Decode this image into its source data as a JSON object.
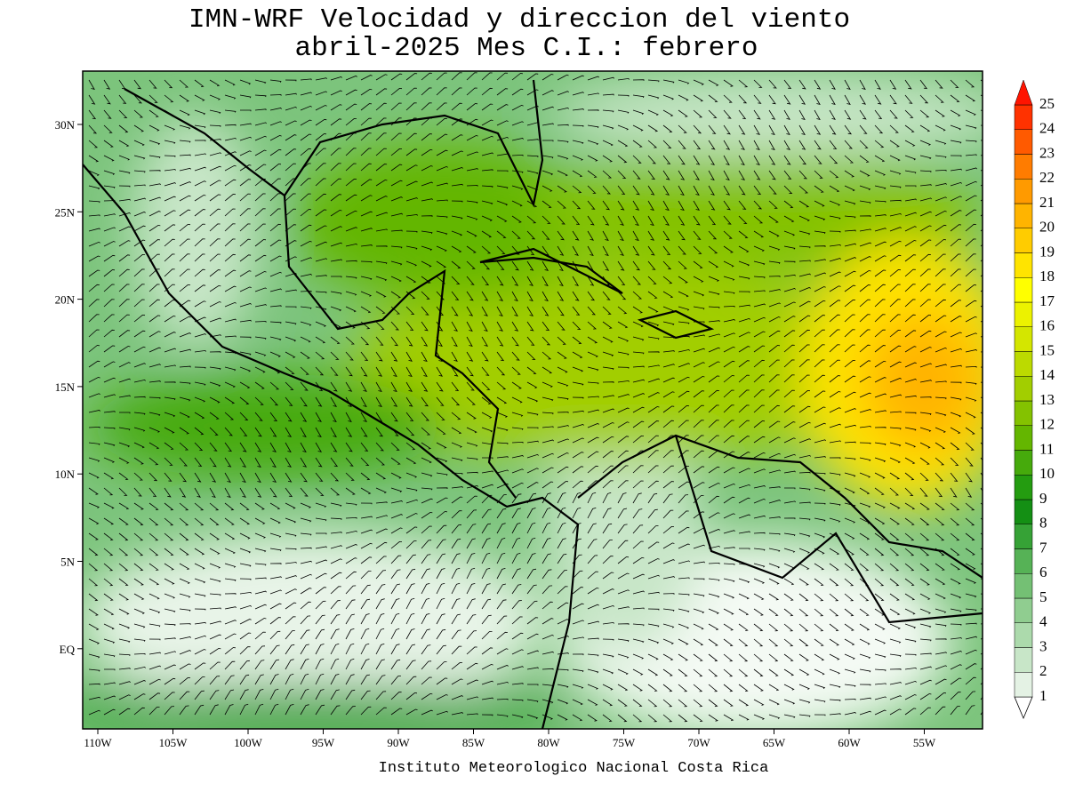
{
  "title": [
    "IMN-WRF Velocidad y direccion del viento",
    "abril-2025 Mes C.I.: febrero"
  ],
  "map": {
    "x_labels": [
      "110W",
      "105W",
      "100W",
      "95W",
      "90W",
      "85W",
      "80W",
      "75W",
      "70W",
      "65W",
      "60W",
      "55W"
    ],
    "y_labels": [
      "30N",
      "25N",
      "20N",
      "15N",
      "10N",
      "5N",
      "EQ"
    ]
  },
  "colorbar": {
    "levels": [
      1,
      2,
      3,
      4,
      5,
      6,
      7,
      8,
      9,
      10,
      11,
      12,
      13,
      14,
      15,
      16,
      17,
      18,
      19,
      20,
      21,
      22,
      23,
      24,
      25
    ],
    "colors": [
      "#e4f2e4",
      "#c8e6c8",
      "#acdaac",
      "#90cd90",
      "#74c074",
      "#56b256",
      "#36a236",
      "#148f14",
      "#249c10",
      "#46aa0c",
      "#64b600",
      "#84c200",
      "#a2ce00",
      "#bcda00",
      "#d4e600",
      "#ecf200",
      "#ffff00",
      "#ffe400",
      "#ffcc00",
      "#ffb400",
      "#ff9a00",
      "#ff7c00",
      "#ff5a00",
      "#ff3200",
      "#ff1400"
    ]
  },
  "footer": "Instituto Meteorologico Nacional Costa Rica"
}
